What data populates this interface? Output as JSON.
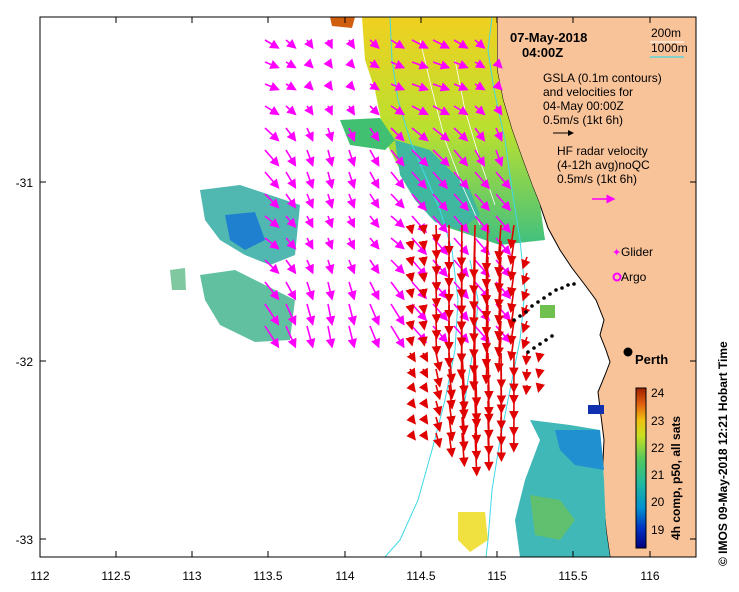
{
  "map": {
    "date": "07-May-2018",
    "time": "04:00Z",
    "legend": {
      "depth_200": "200m",
      "depth_1000": "1000m",
      "gsla_line1": "GSLA (0.1m contours)",
      "gsla_line2": "and velocities for",
      "gsla_line3": "04-May 00:00Z",
      "gsla_speed": "0.5m/s (1kt 6h)",
      "hf_line1": "HF radar velocity",
      "hf_line2": "(4-12h avg)noQC",
      "hf_speed": "0.5m/s (1kt 6h)",
      "glider": "Glider",
      "argo": "Argo"
    },
    "city": "Perth",
    "colorbar": {
      "title": "4h comp, p50, all sats",
      "ticks": [
        "24",
        "23",
        "22",
        "21",
        "20",
        "19"
      ],
      "colors": [
        "#00007f",
        "#0030c0",
        "#0080d0",
        "#20b0b0",
        "#30c080",
        "#80d040",
        "#d0e020",
        "#f0c010",
        "#e07010",
        "#b03000"
      ]
    },
    "x_ticks": [
      "112",
      "112.5",
      "113",
      "113.5",
      "114",
      "114.5",
      "115",
      "115.5",
      "116"
    ],
    "y_ticks": [
      "-31",
      "-32",
      "-33"
    ],
    "credit": "© IMOS 09-May-2018 12:21 Hobart Time",
    "colors": {
      "land": "#f9c39a",
      "sst_arrow": "#ff00ff",
      "radar_arrow": "#e00000",
      "isobath": "#40d8e8"
    }
  }
}
